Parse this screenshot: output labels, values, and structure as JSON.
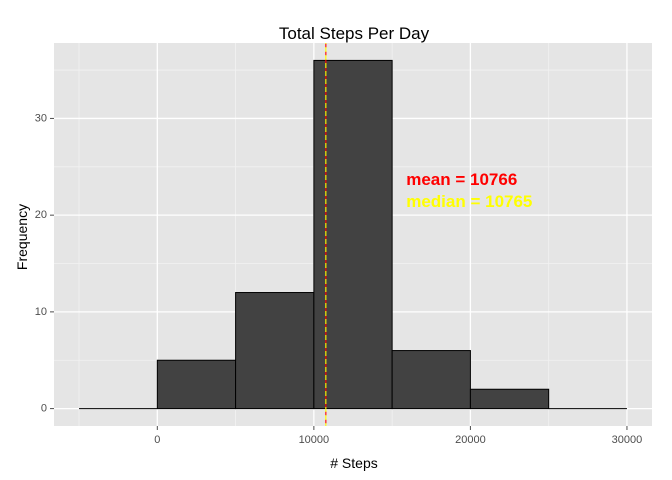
{
  "chart_data": {
    "type": "bar",
    "title": "Total Steps Per Day",
    "xlabel": "# Steps",
    "ylabel": "Frequency",
    "xlim": [
      -6600,
      31600
    ],
    "ylim": [
      -1.8,
      37.8
    ],
    "xticks": [
      0,
      10000,
      20000,
      30000
    ],
    "xtick_labels": [
      "0",
      "10000",
      "20000",
      "30000"
    ],
    "yticks": [
      0,
      10,
      20,
      30
    ],
    "ytick_labels": [
      "0",
      "10",
      "20",
      "30"
    ],
    "bins": [
      {
        "start": -5000,
        "end": 0,
        "count": 0
      },
      {
        "start": 0,
        "end": 5000,
        "count": 5
      },
      {
        "start": 5000,
        "end": 10000,
        "count": 12
      },
      {
        "start": 10000,
        "end": 15000,
        "count": 36
      },
      {
        "start": 15000,
        "end": 20000,
        "count": 6
      },
      {
        "start": 20000,
        "end": 25000,
        "count": 2
      },
      {
        "start": 25000,
        "end": 30000,
        "count": 0
      }
    ],
    "grid": true,
    "reference_lines": [
      {
        "value": 10766,
        "color": "#ff0000"
      },
      {
        "value": 10765,
        "color": "#ffff00"
      }
    ],
    "annotations": [
      {
        "text": "mean = 10766",
        "x": 15900,
        "y": 23.6,
        "color": "#ff0000"
      },
      {
        "text": "median = 10765",
        "x": 15900,
        "y": 21.3,
        "color": "#ffff00"
      }
    ],
    "colors": {
      "panel": "#e5e5e5",
      "grid_major": "#ffffff",
      "grid_minor": "#f2f2f2",
      "bar_fill": "#424242",
      "bar_stroke": "#000000",
      "tick": "#4d4d4d"
    }
  }
}
